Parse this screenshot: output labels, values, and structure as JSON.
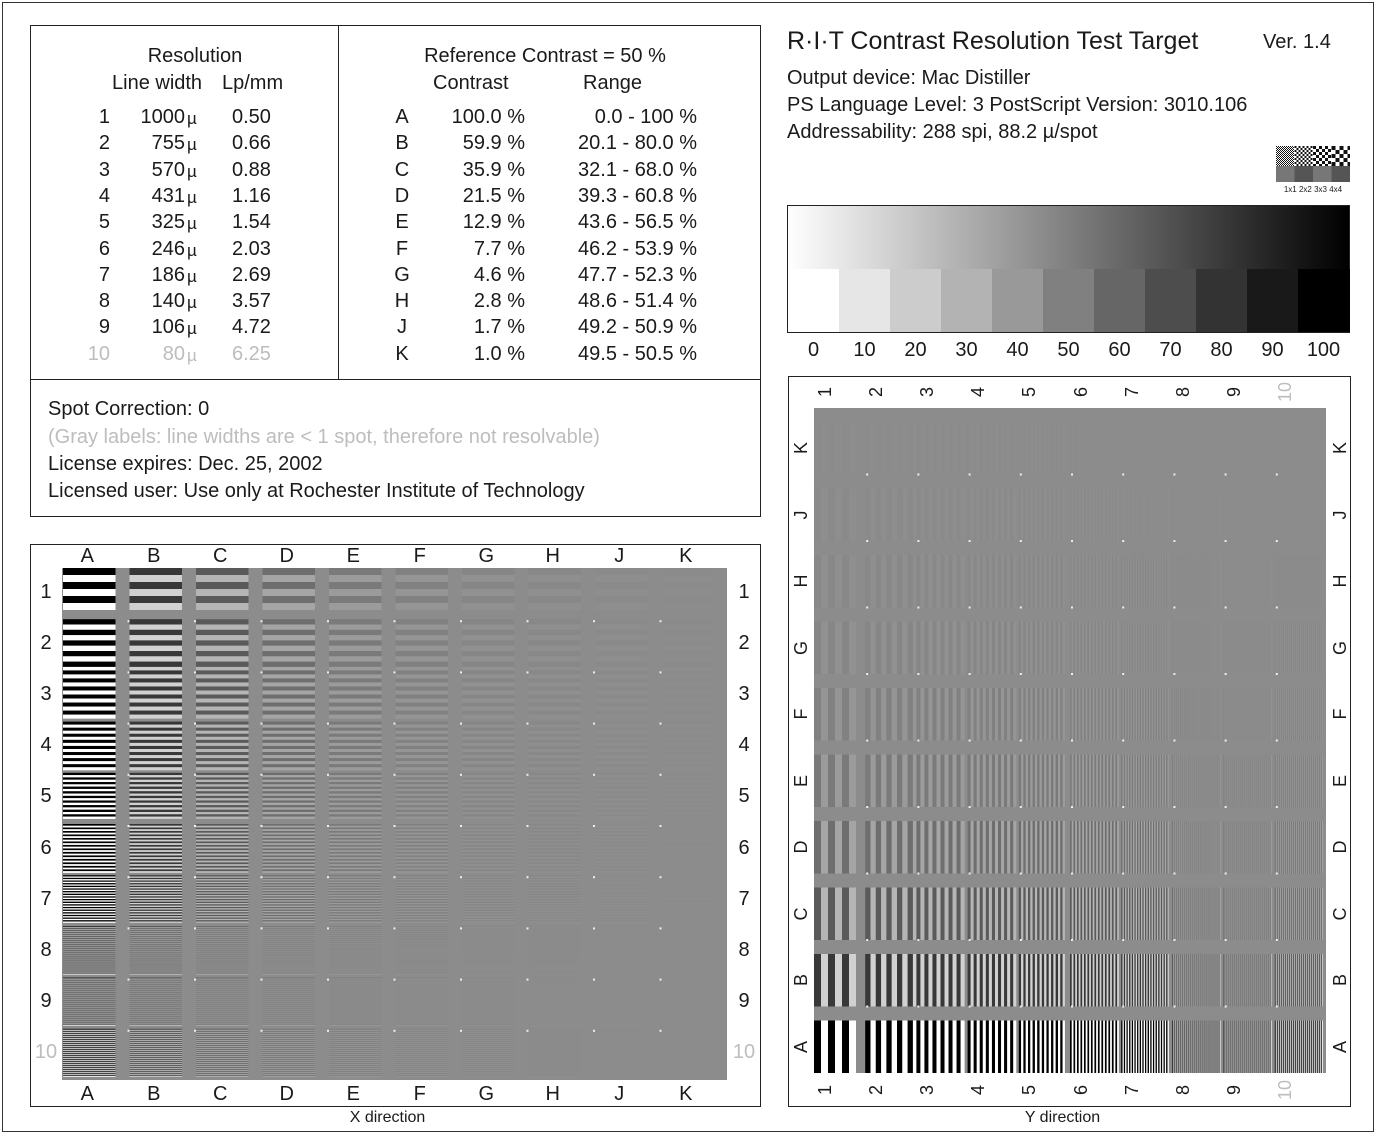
{
  "resolution_table": {
    "title": "Resolution",
    "col_line_width": "Line width",
    "col_lpmm": "Lp/mm",
    "rows": [
      {
        "n": "1",
        "width": "1000",
        "unit": "µ",
        "lpmm": "0.50",
        "gray": false
      },
      {
        "n": "2",
        "width": "755",
        "unit": "µ",
        "lpmm": "0.66",
        "gray": false
      },
      {
        "n": "3",
        "width": "570",
        "unit": "µ",
        "lpmm": "0.88",
        "gray": false
      },
      {
        "n": "4",
        "width": "431",
        "unit": "µ",
        "lpmm": "1.16",
        "gray": false
      },
      {
        "n": "5",
        "width": "325",
        "unit": "µ",
        "lpmm": "1.54",
        "gray": false
      },
      {
        "n": "6",
        "width": "246",
        "unit": "µ",
        "lpmm": "2.03",
        "gray": false
      },
      {
        "n": "7",
        "width": "186",
        "unit": "µ",
        "lpmm": "2.69",
        "gray": false
      },
      {
        "n": "8",
        "width": "140",
        "unit": "µ",
        "lpmm": "3.57",
        "gray": false
      },
      {
        "n": "9",
        "width": "106",
        "unit": "µ",
        "lpmm": "4.72",
        "gray": false
      },
      {
        "n": "10",
        "width": "80",
        "unit": "µ",
        "lpmm": "6.25",
        "gray": true
      }
    ]
  },
  "contrast_table": {
    "title": "Reference Contrast = 50 %",
    "col_contrast": "Contrast",
    "col_range": "Range",
    "rows": [
      {
        "id": "A",
        "contrast": "100.0 %",
        "range": "0.0 -  100 %"
      },
      {
        "id": "B",
        "contrast": "59.9 %",
        "range": "20.1 - 80.0 %"
      },
      {
        "id": "C",
        "contrast": "35.9 %",
        "range": "32.1 - 68.0 %"
      },
      {
        "id": "D",
        "contrast": "21.5 %",
        "range": "39.3 - 60.8 %"
      },
      {
        "id": "E",
        "contrast": "12.9 %",
        "range": "43.6 - 56.5 %"
      },
      {
        "id": "F",
        "contrast": "7.7 %",
        "range": "46.2 - 53.9 %"
      },
      {
        "id": "G",
        "contrast": "4.6 %",
        "range": "47.7 - 52.3 %"
      },
      {
        "id": "H",
        "contrast": "2.8 %",
        "range": "48.6 - 51.4 %"
      },
      {
        "id": "J",
        "contrast": "1.7 %",
        "range": "49.2 - 50.9 %"
      },
      {
        "id": "K",
        "contrast": "1.0 %",
        "range": "49.5 - 50.5 %"
      }
    ]
  },
  "notes": {
    "spot_correction": "Spot Correction: 0",
    "gray_note": "(Gray labels: line widths are < 1 spot, therefore not resolvable)",
    "license": "License expires: Dec. 25, 2002",
    "user": "Licensed user: Use only at Rochester Institute of Technology"
  },
  "header": {
    "title": "R·I·T  Contrast Resolution Test Target",
    "version": "Ver. 1.4",
    "output_device": "Output device: Mac Distiller",
    "ps_info": "PS Language Level: 3  PostScript Version: 3010.106",
    "addressability": "Addressability: 288 spi, 88.2 µ/spot",
    "pattern_label": "1x1 2x2 3x3 4x4"
  },
  "gray_ramp": {
    "steps": [
      0,
      10,
      20,
      30,
      40,
      50,
      60,
      70,
      80,
      90,
      100
    ],
    "labels": [
      "0",
      "10",
      "20",
      "30",
      "40",
      "50",
      "60",
      "70",
      "80",
      "90",
      "100"
    ]
  },
  "x_target": {
    "caption": "X direction",
    "columns": [
      "A",
      "B",
      "C",
      "D",
      "E",
      "F",
      "G",
      "H",
      "J",
      "K"
    ],
    "rows": [
      "1",
      "2",
      "3",
      "4",
      "5",
      "6",
      "7",
      "8",
      "9",
      "10"
    ]
  },
  "y_target": {
    "caption": "Y direction",
    "columns": [
      "1",
      "2",
      "3",
      "4",
      "5",
      "6",
      "7",
      "8",
      "9",
      "10"
    ],
    "rows": [
      "K",
      "J",
      "H",
      "G",
      "F",
      "E",
      "D",
      "C",
      "B",
      "A"
    ]
  },
  "colors": {
    "background_gray": "#8c8c8c",
    "ink": "#1a1a1a",
    "unresolvable_label": "#bdbdbd"
  }
}
